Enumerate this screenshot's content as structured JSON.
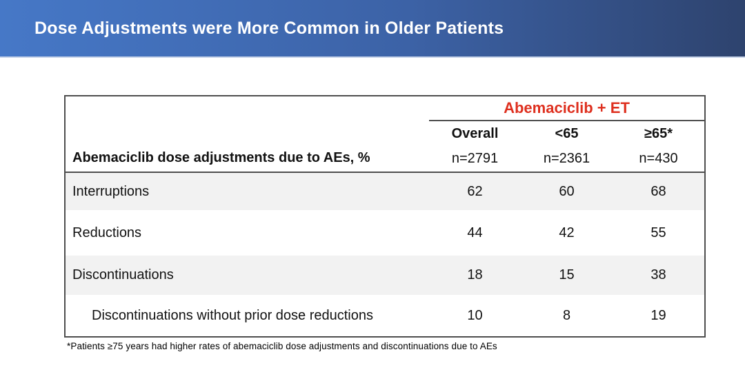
{
  "slide_title": "Dose Adjustments were More Common in Older Patients",
  "table": {
    "group_header": "Abemaciclib + ET",
    "row_header": "Abemaciclib dose adjustments due to AEs, %",
    "columns": [
      {
        "label": "Overall",
        "n": "n=2791"
      },
      {
        "label": "<65",
        "n": "n=2361"
      },
      {
        "label": "≥65*",
        "n": "n=430"
      }
    ],
    "rows": [
      {
        "label": "Interruptions",
        "values": [
          "62",
          "60",
          "68"
        ]
      },
      {
        "label": "Reductions",
        "values": [
          "44",
          "42",
          "55"
        ]
      },
      {
        "label": "Discontinuations",
        "values": [
          "18",
          "15",
          "38"
        ]
      },
      {
        "label": "Discontinuations without prior dose reductions",
        "values": [
          "10",
          "8",
          "19"
        ]
      }
    ]
  },
  "footnote": "*Patients ≥75 years had higher rates of abemaciclib dose adjustments and discontinuations due to AEs",
  "colors": {
    "accent_red": "#DE2F1E",
    "banner_gradient_start": "#4678C7",
    "banner_gradient_end": "#2E436E",
    "stripe_gray": "#F2F2F2",
    "border_dark": "#4D4D4D"
  }
}
